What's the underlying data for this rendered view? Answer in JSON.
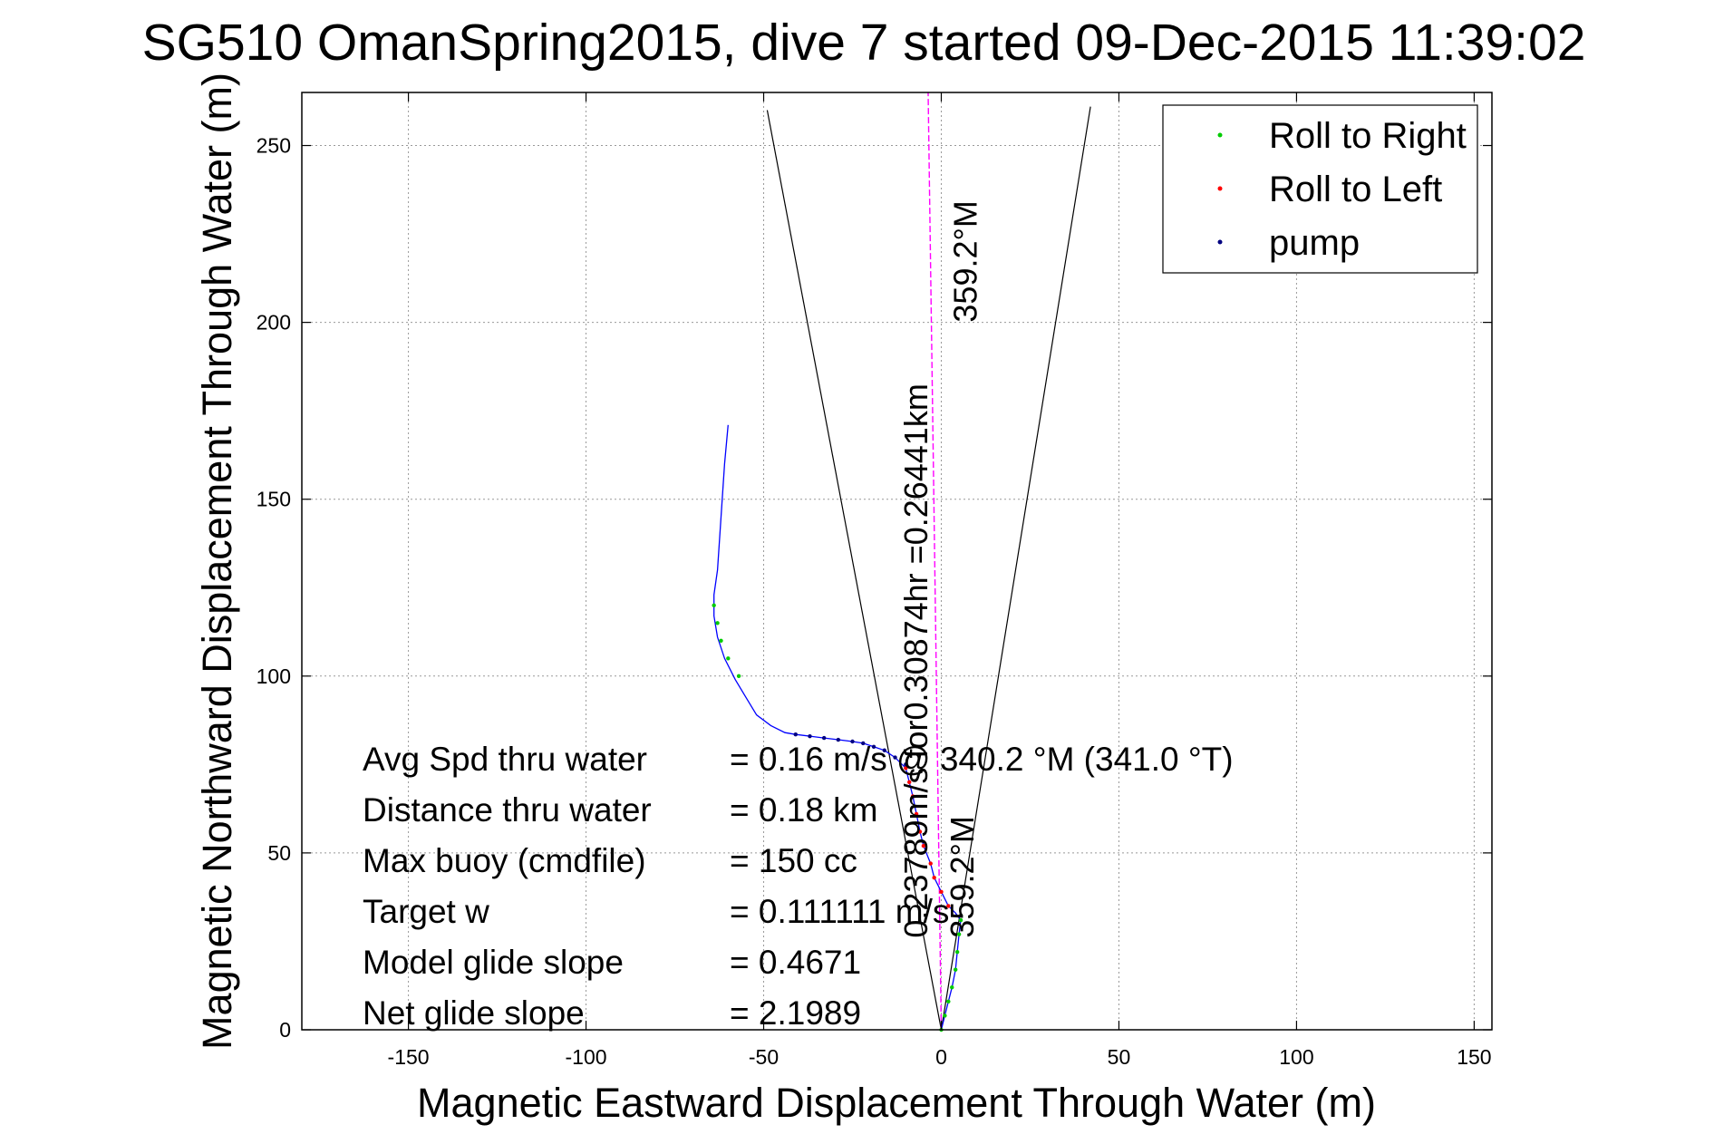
{
  "chart_data": {
    "type": "line",
    "title": "SG510 OmanSpring2015, dive 7 started 09-Dec-2015 11:39:02",
    "xlabel": "Magnetic Eastward Displacement Through Water (m)",
    "ylabel": "Magnetic Northward Displacement Through Water (m)",
    "xlim": [
      -180,
      155
    ],
    "ylim": [
      0,
      265
    ],
    "xticks": [
      -150,
      -100,
      -50,
      0,
      50,
      100,
      150
    ],
    "yticks": [
      0,
      50,
      100,
      150,
      200,
      250
    ],
    "grid": true,
    "legend_position": "top-right",
    "legend": [
      {
        "label": "Roll to Right",
        "color": "#00cc00"
      },
      {
        "label": "Roll to Left",
        "color": "#ff0000"
      },
      {
        "label": "pump",
        "color": "#000080"
      }
    ],
    "series": [
      {
        "name": "Roll to Right",
        "color": "#00cc00",
        "style": "dots",
        "points": [
          [
            0,
            0
          ],
          [
            1,
            4
          ],
          [
            2,
            8
          ],
          [
            3,
            12
          ],
          [
            4,
            17
          ],
          [
            4.5,
            22
          ],
          [
            5,
            27
          ],
          [
            5.5,
            31
          ],
          [
            -57,
            100
          ],
          [
            -60,
            105
          ],
          [
            -62,
            110
          ],
          [
            -63,
            115
          ],
          [
            -64,
            120
          ]
        ]
      },
      {
        "name": "Roll to Left",
        "color": "#ff0000",
        "style": "dots",
        "points": [
          [
            2,
            35
          ],
          [
            0,
            39
          ],
          [
            -2,
            43
          ],
          [
            -3,
            47
          ],
          [
            -5,
            52
          ],
          [
            -6,
            56
          ],
          [
            -7,
            61
          ],
          [
            -8,
            66
          ],
          [
            -9,
            70
          ],
          [
            -10,
            74
          ]
        ]
      },
      {
        "name": "pump",
        "color": "#000080",
        "style": "dots",
        "points": [
          [
            -10,
            75
          ],
          [
            -13,
            77
          ],
          [
            -16,
            79
          ],
          [
            -19,
            80
          ],
          [
            -22,
            81
          ],
          [
            -25,
            81.5
          ],
          [
            -29,
            82
          ],
          [
            -33,
            82.5
          ],
          [
            -37,
            83
          ],
          [
            -41,
            83.5
          ]
        ]
      }
    ],
    "track": {
      "color": "#0000ff",
      "points": [
        [
          0,
          0
        ],
        [
          1,
          4
        ],
        [
          2,
          8
        ],
        [
          3,
          12
        ],
        [
          4,
          17
        ],
        [
          4.5,
          22
        ],
        [
          5,
          27
        ],
        [
          5.5,
          31
        ],
        [
          4,
          33
        ],
        [
          2,
          35
        ],
        [
          0,
          39
        ],
        [
          -2,
          43
        ],
        [
          -3,
          47
        ],
        [
          -5,
          52
        ],
        [
          -6,
          56
        ],
        [
          -7,
          61
        ],
        [
          -8,
          66
        ],
        [
          -9,
          70
        ],
        [
          -10,
          74
        ],
        [
          -13,
          77
        ],
        [
          -16,
          79
        ],
        [
          -19,
          80
        ],
        [
          -22,
          81
        ],
        [
          -25,
          81.5
        ],
        [
          -29,
          82
        ],
        [
          -33,
          82.5
        ],
        [
          -37,
          83
        ],
        [
          -41,
          83.5
        ],
        [
          -44,
          84
        ],
        [
          -48,
          86
        ],
        [
          -52,
          89
        ],
        [
          -55,
          94
        ],
        [
          -58,
          99
        ],
        [
          -61,
          105
        ],
        [
          -63,
          111
        ],
        [
          -64,
          117
        ],
        [
          -64,
          123
        ],
        [
          -63,
          130
        ],
        [
          -62,
          145
        ],
        [
          -61,
          160
        ],
        [
          -60,
          171
        ]
      ]
    },
    "heading_line": {
      "color": "#ff00ff",
      "points": [
        [
          0,
          0
        ],
        [
          -3.7,
          265
        ]
      ]
    },
    "cone_lines": {
      "color": "#000000",
      "lines": [
        [
          [
            0,
            0
          ],
          [
            -49,
            260
          ]
        ],
        [
          [
            0,
            0
          ],
          [
            42,
            261
          ]
        ]
      ]
    },
    "annotations": [
      {
        "text": "0.23789m/s for0.30874hr =0.26441km",
        "x": -4,
        "y": 26,
        "rotation": -90
      },
      {
        "text": "359.2°M",
        "x": 10,
        "y": 200,
        "rotation": -90
      },
      {
        "text": "359.2°M",
        "x": 9,
        "y": 26,
        "rotation": -90
      }
    ],
    "stats": [
      {
        "label": "Avg Spd thru water",
        "value": "=  0.16 m/s @ 340.2 °M (341.0 °T)"
      },
      {
        "label": "Distance thru water",
        "value": "=  0.18 km"
      },
      {
        "label": "Max buoy (cmdfile)",
        "value": "= 150 cc"
      },
      {
        "label": "Target w",
        "value": "= 0.111111 m/s"
      },
      {
        "label": "Model glide slope",
        "value": "= 0.4671"
      },
      {
        "label": "Net glide slope",
        "value": "= 2.1989"
      }
    ]
  }
}
